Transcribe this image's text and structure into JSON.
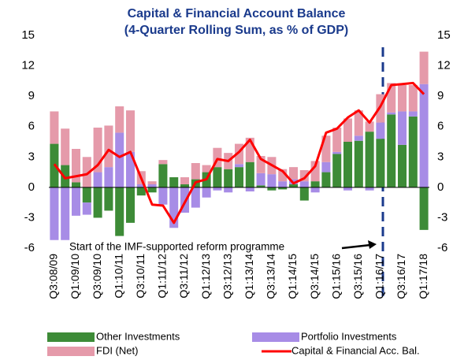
{
  "chart_data": {
    "type": "bar",
    "title": "Capital & Financial Account Balance",
    "subtitle": "(4-Quarter Rolling Sum, as % of GDP)",
    "annotation": "Start of the IMF-supported reform programme",
    "categories": [
      "Q3:08/09",
      null,
      "Q1:09/10",
      null,
      "Q3:09/10",
      null,
      "Q1:10/11",
      null,
      "Q3:10/11",
      null,
      "Q1:11/12",
      null,
      "Q3:11/12",
      null,
      "Q1:12/13",
      null,
      "Q3:12/13",
      null,
      "Q1:13/14",
      null,
      "Q3:13/14",
      null,
      "Q1:14/15",
      null,
      "Q3:14/15",
      null,
      "Q1:15/16",
      null,
      "Q3:15/16",
      null,
      "Q1:16/17",
      null,
      "Q3:16/17",
      null,
      "Q1:17/18"
    ],
    "series": [
      {
        "name": "Other Investments",
        "color": "#3d8b37",
        "values": [
          4.3,
          2.2,
          0.5,
          -1.5,
          -3.0,
          -2.3,
          -4.8,
          -3.5,
          -0.8,
          -0.5,
          2.3,
          1.0,
          0.3,
          0.8,
          1.5,
          2.0,
          1.8,
          2.0,
          2.5,
          0.2,
          -0.3,
          -0.2,
          0.3,
          -1.3,
          0.6,
          1.5,
          3.3,
          4.5,
          4.6,
          5.5,
          4.8,
          7.2,
          4.2,
          7.0,
          -4.2
        ]
      },
      {
        "name": "Portfolio Investments",
        "color": "#a78ce6",
        "values": [
          -5.2,
          -5.2,
          -2.8,
          -1.2,
          1.5,
          2.0,
          5.4,
          3.5,
          0.3,
          0.3,
          -1.7,
          -4.0,
          -2.5,
          -2.0,
          -1.0,
          -0.3,
          -0.5,
          0.3,
          -0.4,
          1.2,
          1.3,
          0.6,
          0.5,
          0.6,
          -0.5,
          1.0,
          0.2,
          -0.3,
          0.5,
          -0.3,
          1.6,
          0.2,
          3.3,
          0.5,
          10.2
        ]
      },
      {
        "name": "FDI (Net)",
        "color": "#e59aaa",
        "values": [
          3.2,
          3.6,
          3.3,
          3.0,
          4.4,
          4.1,
          2.6,
          4.1,
          1.3,
          0.3,
          0.4,
          0.0,
          0.7,
          1.6,
          0.7,
          1.9,
          1.6,
          2.0,
          2.4,
          1.7,
          1.7,
          1.2,
          1.2,
          1.1,
          2.0,
          2.6,
          2.4,
          2.3,
          2.5,
          1.0,
          2.8,
          2.9,
          2.6,
          2.6,
          3.2
        ]
      },
      {
        "name": "Capital & Financial Acc. Bal.",
        "color": "#ff0000",
        "type": "line",
        "values": [
          2.3,
          0.9,
          1.1,
          1.3,
          2.2,
          3.7,
          3.0,
          3.5,
          0.9,
          -1.7,
          -1.8,
          -3.5,
          -1.5,
          0.5,
          0.8,
          2.8,
          2.6,
          3.5,
          4.7,
          2.8,
          2.2,
          1.6,
          0.4,
          0.9,
          2.1,
          5.4,
          5.8,
          6.9,
          7.6,
          6.4,
          8.0,
          10.1,
          10.2,
          10.3,
          9.2
        ]
      }
    ],
    "ylim": [
      -6,
      15
    ],
    "yticks": [
      -6,
      -3,
      0,
      3,
      6,
      9,
      12,
      15
    ],
    "y2lim": [
      -6,
      15
    ],
    "y2ticks": [
      -6,
      -3,
      0,
      3,
      6,
      9,
      12,
      15
    ],
    "stacked": true,
    "grid": false,
    "legend": "bottom"
  }
}
